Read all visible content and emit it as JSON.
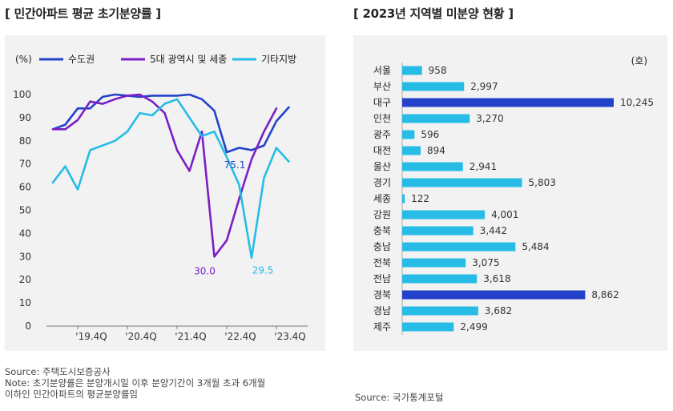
{
  "left_title": "[ 민간아파트 평균 초기분양률 ]",
  "right_title": "[ 2023년 지역별 미분양 현황 ]",
  "left_source": {
    "line1": "Source: 주택도시보증공사",
    "line2": "Note: 초기분양률은 분양개시일 이후 분양기간이 3개월 초과 6개월",
    "line3": "이하인 민간아파트의 평균분양률임"
  },
  "right_source": "Source: 국가통계포털",
  "colors": {
    "metro": "#2442c9",
    "cities": "#7b1fc4",
    "others": "#27bce6"
  },
  "chart_data": [
    {
      "type": "line",
      "ylabel": "(%)",
      "ylim": [
        0,
        100
      ],
      "yticks": [
        0,
        10,
        20,
        30,
        40,
        50,
        60,
        70,
        80,
        90,
        100
      ],
      "x": [
        0,
        1,
        2,
        3,
        4,
        5,
        6,
        7,
        8,
        9,
        10,
        11,
        12,
        13,
        14,
        15,
        16,
        17,
        18,
        19,
        20
      ],
      "xtick_positions": [
        2,
        6,
        10,
        14,
        18
      ],
      "xtick_labels": [
        "'19.4Q",
        "'20.4Q",
        "'21.4Q",
        "'22.4Q",
        "'23.4Q"
      ],
      "series": [
        {
          "name": "수도권",
          "values": [
            85,
            87,
            94,
            94,
            99,
            100,
            99.5,
            99,
            99.5,
            99.5,
            99.5,
            100,
            98,
            93,
            75.1,
            77,
            76,
            78,
            88.5,
            94.5,
            null
          ]
        },
        {
          "name": "5대 광역시 및 세종",
          "values": [
            85,
            85,
            89,
            97,
            96,
            98,
            99.5,
            100,
            97,
            92,
            76,
            67,
            84,
            30.0,
            37,
            55,
            72,
            84,
            94,
            null,
            null
          ]
        },
        {
          "name": "기타지방",
          "values": [
            62,
            69,
            59,
            76,
            78,
            80,
            84,
            92,
            91,
            96,
            98,
            90,
            82,
            84,
            73,
            61,
            29.5,
            64,
            77,
            71,
            null
          ]
        }
      ],
      "annotations": [
        {
          "series": "수도권",
          "x": 14,
          "label": "75.1"
        },
        {
          "series": "5대 광역시 및 세종",
          "x": 13,
          "label": "30.0"
        },
        {
          "series": "기타지방",
          "x": 16,
          "label": "29.5"
        }
      ]
    },
    {
      "type": "bar",
      "orientation": "horizontal",
      "unit": "(호)",
      "categories": [
        "서울",
        "부산",
        "대구",
        "인천",
        "광주",
        "대전",
        "울산",
        "경기",
        "세종",
        "강원",
        "충북",
        "충남",
        "전북",
        "전남",
        "경북",
        "경남",
        "제주"
      ],
      "values": [
        958,
        2997,
        10245,
        3270,
        596,
        894,
        2941,
        5803,
        122,
        4001,
        3442,
        5484,
        3075,
        3618,
        8862,
        3682,
        2499
      ],
      "value_labels": [
        "958",
        "2,997",
        "10,245",
        "3,270",
        "596",
        "894",
        "2,941",
        "5,803",
        "122",
        "4,001",
        "3,442",
        "5,484",
        "3,075",
        "3,618",
        "8,862",
        "3,682",
        "2,499"
      ],
      "highlight": [
        "대구",
        "경북"
      ],
      "xlim": [
        0,
        10245
      ]
    }
  ]
}
